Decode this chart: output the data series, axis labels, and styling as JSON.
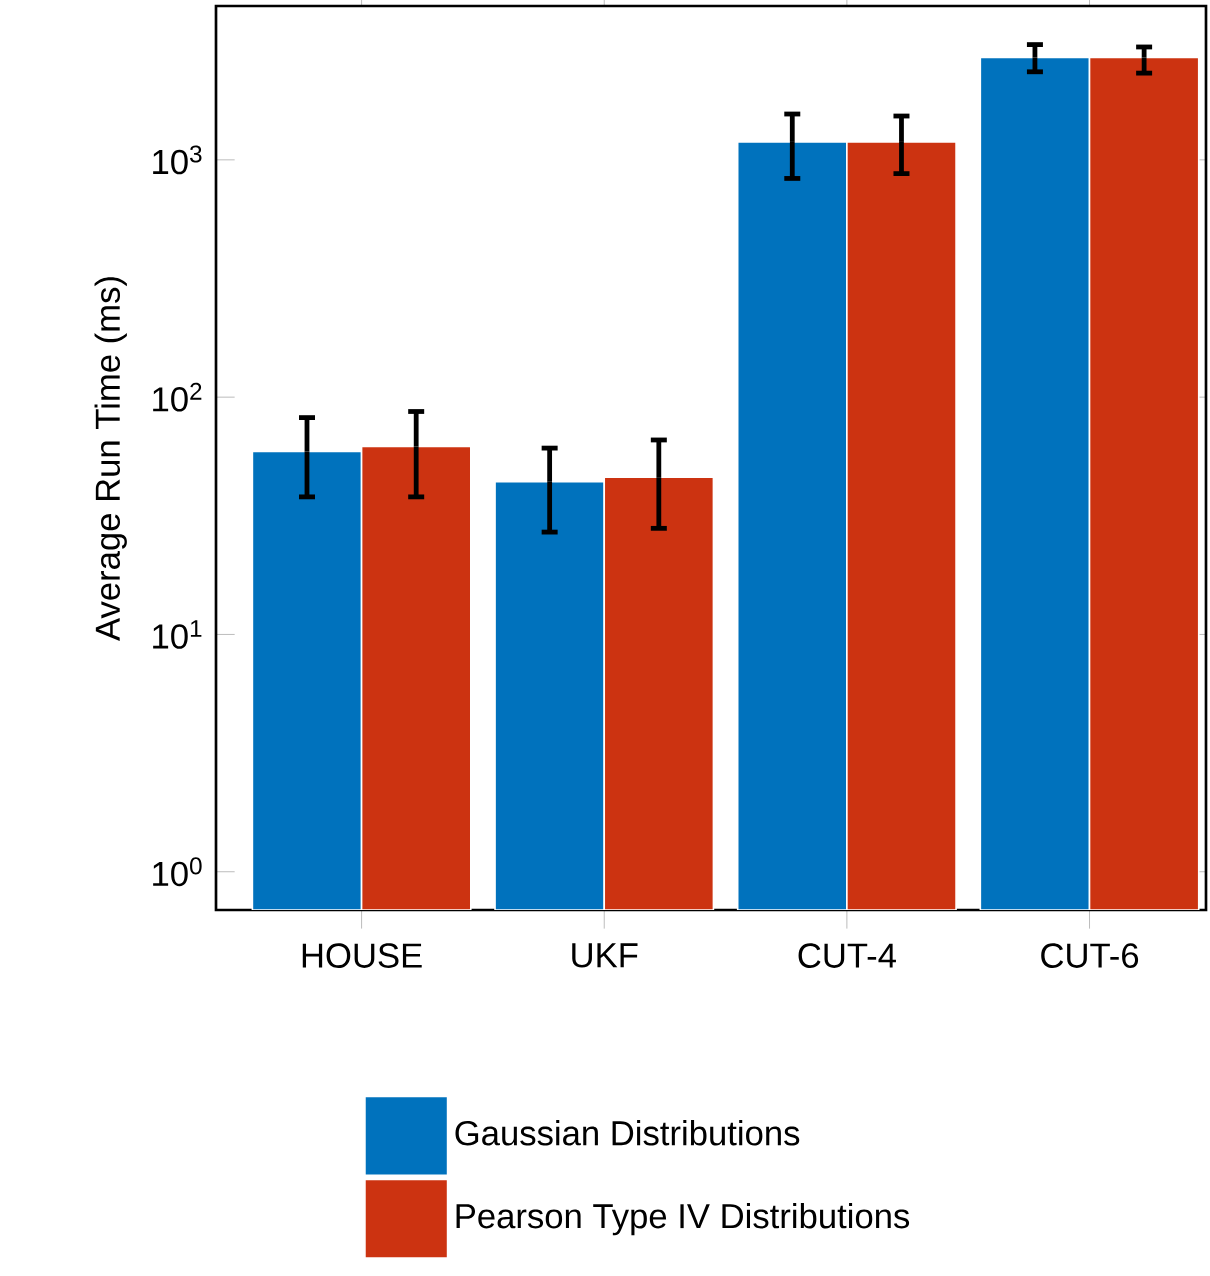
{
  "chart_data": {
    "type": "bar",
    "ylabel": "Average Run Time (ms)",
    "categories": [
      "HOUSE",
      "UKF",
      "CUT-4",
      "CUT-6"
    ],
    "series": [
      {
        "name": "Gaussian Distributions",
        "color": "#0072bd",
        "values": [
          59,
          44,
          1190,
          2700
        ],
        "errors": [
          [
            38,
            82
          ],
          [
            27,
            61
          ],
          [
            835,
            1560
          ],
          [
            2350,
            3060
          ]
        ]
      },
      {
        "name": "Pearson Type IV Distributions",
        "color": "#cc3311",
        "values": [
          62,
          46,
          1190,
          2700
        ],
        "errors": [
          [
            38,
            87
          ],
          [
            28,
            66
          ],
          [
            875,
            1530
          ],
          [
            2320,
            2990
          ]
        ]
      }
    ],
    "log": "y",
    "ylim": [
      0.69,
      4450
    ],
    "yticks": [
      {
        "value": 1,
        "label": "10$^{0}$"
      },
      {
        "value": 10,
        "label": "10$^{1}$"
      },
      {
        "value": 100,
        "label": "10$^{2}$"
      },
      {
        "value": 1000,
        "label": "10$^{3}$"
      }
    ],
    "grid": false,
    "legend": "bottom"
  }
}
